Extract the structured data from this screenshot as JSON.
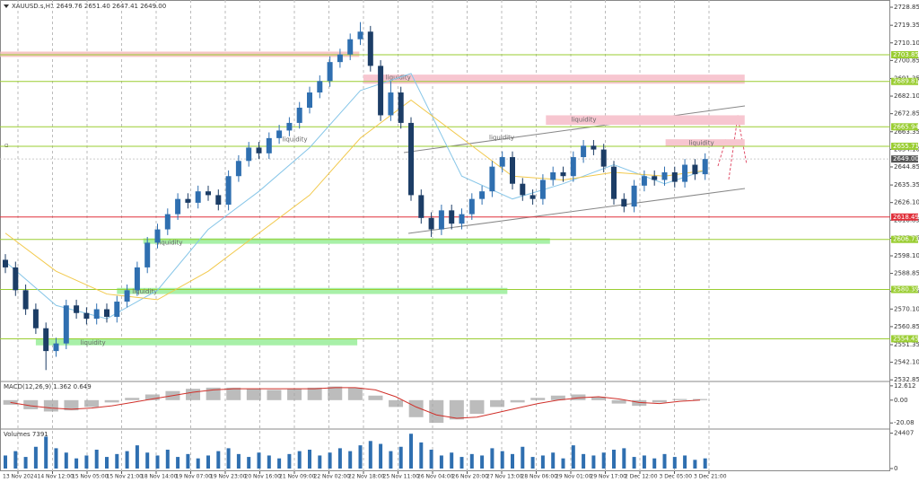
{
  "header": "XAUUSD.s,H1  2649.76 2651.40 2647.41 2649.00",
  "chart_data": {
    "type": "candlestick",
    "up_color": "#2f6fb0",
    "down_color": "#1c3d66",
    "grid": true,
    "ylim": [
      2532,
      2731.7
    ],
    "yticks": [
      {
        "value": 2728.85,
        "label": "2728.85"
      },
      {
        "value": 2719.35,
        "label": "2719.35"
      },
      {
        "value": 2710.1,
        "label": "2710.10"
      },
      {
        "value": 2700.85,
        "label": "2700.85"
      },
      {
        "value": 2691.35,
        "label": "2691.35"
      },
      {
        "value": 2682.1,
        "label": "2682.10"
      },
      {
        "value": 2672.85,
        "label": "2672.85"
      },
      {
        "value": 2663.35,
        "label": "2663.35"
      },
      {
        "value": 2654.1,
        "label": "2654.10"
      },
      {
        "value": 2644.85,
        "label": "2644.85"
      },
      {
        "value": 2635.35,
        "label": "2635.35"
      },
      {
        "value": 2626.1,
        "label": "2626.10"
      },
      {
        "value": 2616.85,
        "label": "2616.85"
      },
      {
        "value": 2607.35,
        "label": "2607.35"
      },
      {
        "value": 2598.1,
        "label": "2598.10"
      },
      {
        "value": 2588.85,
        "label": "2588.85"
      },
      {
        "value": 2579.35,
        "label": "2579.35"
      },
      {
        "value": 2570.1,
        "label": "2570.10"
      },
      {
        "value": 2560.85,
        "label": "2560.85"
      },
      {
        "value": 2551.35,
        "label": "2551.35"
      },
      {
        "value": 2542.1,
        "label": "2542.10"
      },
      {
        "value": 2532.85,
        "label": "2532.85"
      }
    ],
    "categories": [
      "13 Nov 2024",
      "14 Nov 12:00",
      "15 Nov 05:00",
      "15 Nov 21:00",
      "18 Nov 14:00",
      "19 Nov 07:00",
      "19 Nov 23:00",
      "20 Nov 16:00",
      "21 Nov 09:00",
      "22 Nov 02:00",
      "22 Nov 18:00",
      "25 Nov 11:00",
      "26 Nov 04:00",
      "26 Nov 20:00",
      "27 Nov 13:00",
      "28 Nov 06:00",
      "29 Nov 01:00",
      "29 Nov 17:00",
      "2 Dec 12:00",
      "3 Dec 05:00",
      "3 Dec 21:00"
    ],
    "candles": [
      [
        2596,
        2599,
        2589,
        2592
      ],
      [
        2592,
        2595,
        2577,
        2580
      ],
      [
        2580,
        2583,
        2567,
        2570
      ],
      [
        2570,
        2573,
        2557,
        2560
      ],
      [
        2560,
        2563,
        2538,
        2548
      ],
      [
        2548,
        2555,
        2545,
        2552
      ],
      [
        2552,
        2575,
        2549,
        2572
      ],
      [
        2572,
        2575,
        2565,
        2568
      ],
      [
        2568,
        2571,
        2562,
        2565
      ],
      [
        2565,
        2573,
        2562,
        2570
      ],
      [
        2570,
        2573,
        2563,
        2566
      ],
      [
        2566,
        2577,
        2563,
        2574
      ],
      [
        2574,
        2583,
        2571,
        2580
      ],
      [
        2580,
        2595,
        2577,
        2592
      ],
      [
        2592,
        2608,
        2589,
        2605
      ],
      [
        2605,
        2615,
        2602,
        2612
      ],
      [
        2612,
        2623,
        2609,
        2620
      ],
      [
        2620,
        2631,
        2617,
        2628
      ],
      [
        2628,
        2631,
        2623,
        2626
      ],
      [
        2626,
        2635,
        2623,
        2632
      ],
      [
        2632,
        2635,
        2627,
        2630
      ],
      [
        2630,
        2633,
        2622,
        2625
      ],
      [
        2625,
        2643,
        2622,
        2640
      ],
      [
        2640,
        2651,
        2637,
        2648
      ],
      [
        2648,
        2658,
        2645,
        2655
      ],
      [
        2655,
        2658,
        2649,
        2652
      ],
      [
        2652,
        2663,
        2649,
        2660
      ],
      [
        2660,
        2667,
        2657,
        2664
      ],
      [
        2664,
        2671,
        2661,
        2668
      ],
      [
        2668,
        2679,
        2665,
        2676
      ],
      [
        2676,
        2687,
        2673,
        2684
      ],
      [
        2684,
        2693,
        2681,
        2690
      ],
      [
        2690,
        2703,
        2687,
        2700
      ],
      [
        2700,
        2707,
        2697,
        2704
      ],
      [
        2704,
        2715,
        2701,
        2712
      ],
      [
        2712,
        2721,
        2709,
        2716
      ],
      [
        2716,
        2719,
        2695,
        2698
      ],
      [
        2698,
        2701,
        2669,
        2672
      ],
      [
        2672,
        2690,
        2669,
        2684
      ],
      [
        2684,
        2687,
        2665,
        2668
      ],
      [
        2668,
        2671,
        2627,
        2630
      ],
      [
        2630,
        2633,
        2615,
        2618
      ],
      [
        2618,
        2621,
        2608,
        2612
      ],
      [
        2612,
        2625,
        2609,
        2622
      ],
      [
        2622,
        2625,
        2612,
        2615
      ],
      [
        2615,
        2623,
        2612,
        2620
      ],
      [
        2620,
        2631,
        2617,
        2628
      ],
      [
        2628,
        2635,
        2625,
        2632
      ],
      [
        2632,
        2648,
        2629,
        2645
      ],
      [
        2645,
        2653,
        2642,
        2650
      ],
      [
        2650,
        2653,
        2633,
        2636
      ],
      [
        2636,
        2639,
        2627,
        2630
      ],
      [
        2630,
        2633,
        2625,
        2628
      ],
      [
        2628,
        2641,
        2625,
        2638
      ],
      [
        2638,
        2645,
        2635,
        2642
      ],
      [
        2642,
        2645,
        2637,
        2640
      ],
      [
        2640,
        2653,
        2637,
        2650
      ],
      [
        2650,
        2659,
        2647,
        2656
      ],
      [
        2656,
        2659,
        2651,
        2654
      ],
      [
        2654,
        2657,
        2642,
        2645
      ],
      [
        2645,
        2648,
        2625,
        2628
      ],
      [
        2628,
        2631,
        2621,
        2624
      ],
      [
        2624,
        2638,
        2621,
        2635
      ],
      [
        2635,
        2643,
        2632,
        2640
      ],
      [
        2640,
        2643,
        2635,
        2638
      ],
      [
        2638,
        2645,
        2635,
        2642
      ],
      [
        2642,
        2645,
        2634,
        2637
      ],
      [
        2637,
        2649,
        2634,
        2646
      ],
      [
        2646,
        2649,
        2638,
        2641
      ],
      [
        2641,
        2652,
        2638,
        2649
      ]
    ],
    "ma_lines": [
      {
        "color": "#87c6e8",
        "x": [
          0,
          5,
          10,
          15,
          20,
          25,
          30,
          35,
          40,
          45,
          50,
          55,
          60,
          65,
          69
        ],
        "values": [
          2595,
          2572,
          2565,
          2580,
          2612,
          2632,
          2655,
          2685,
          2694,
          2640,
          2628,
          2636,
          2646,
          2636,
          2643
        ]
      },
      {
        "color": "#f2c94c",
        "x": [
          0,
          5,
          10,
          15,
          20,
          25,
          30,
          35,
          40,
          45,
          50,
          55,
          60,
          65,
          69
        ],
        "values": [
          2610,
          2590,
          2578,
          2575,
          2590,
          2610,
          2630,
          2660,
          2680,
          2660,
          2640,
          2638,
          2642,
          2640,
          2643
        ]
      }
    ],
    "levels": [
      {
        "value": 2703.85,
        "label": "2703.85",
        "color": "#9acd32"
      },
      {
        "value": 2689.81,
        "label": "2689.81",
        "color": "#9acd32"
      },
      {
        "value": 2665.94,
        "label": "2665.94",
        "color": "#9acd32"
      },
      {
        "value": 2655.71,
        "label": "2655.71",
        "color": "#9acd32"
      },
      {
        "value": 2649.0,
        "label": "2649.00",
        "color": "#555555"
      },
      {
        "value": 2618.49,
        "label": "2618.49",
        "color": "#e0303a"
      },
      {
        "value": 2606.73,
        "label": "2606.73",
        "color": "#9acd32"
      },
      {
        "value": 2580.39,
        "label": "2580.39",
        "color": "#9acd32"
      },
      {
        "value": 2554.45,
        "label": "2554.45",
        "color": "#9acd32"
      }
    ],
    "zones": [
      {
        "color": "#f6c6c6",
        "x": [
          -0.5,
          34.9
        ],
        "y": [
          2705.5,
          2702.7
        ]
      },
      {
        "color": "#f7c6d0",
        "x": [
          35.3,
          72.9
        ],
        "y": [
          2693.4,
          2688.6
        ]
      },
      {
        "color": "#f7c6d0",
        "x": [
          53.3,
          72.9
        ],
        "y": [
          2672,
          2667
        ]
      },
      {
        "color": "#f7c6d0",
        "x": [
          65.1,
          72.9
        ],
        "y": [
          2659.4,
          2655.7
        ]
      },
      {
        "color": "#a8f0a8",
        "x": [
          13.6,
          53.7
        ],
        "y": [
          2607.3,
          2604.4
        ]
      },
      {
        "color": "#a8f0a8",
        "x": [
          11,
          49.5
        ],
        "y": [
          2581.2,
          2578
        ]
      },
      {
        "color": "#a8f0a8",
        "x": [
          3,
          34.7
        ],
        "y": [
          2554.7,
          2551
        ]
      }
    ],
    "annotations": [
      {
        "text": "liquidity",
        "x": 37.5,
        "y": 2691.9
      },
      {
        "text": "liquidity",
        "x": 27.3,
        "y": 2659.3
      },
      {
        "text": "liquidity",
        "x": 47.7,
        "y": 2660.2
      },
      {
        "text": "liquidity",
        "x": 55.8,
        "y": 2669.6
      },
      {
        "text": "liquidity",
        "x": 67.4,
        "y": 2657.4
      },
      {
        "text": "liquidity",
        "x": 15,
        "y": 2604.9
      },
      {
        "text": "liquidity",
        "x": 12.5,
        "y": 2579.3
      },
      {
        "text": "liquidity",
        "x": 7.4,
        "y": 2552.4
      }
    ],
    "macd": {
      "label": "MACD(12,26,9) 1.362 0.649",
      "ylim": [
        -24.65,
        15.65
      ],
      "yticks": [
        {
          "value": 12.612,
          "label": "12.612"
        },
        {
          "value": 0,
          "label": "0.00"
        },
        {
          "value": -20.08,
          "label": "-20.08"
        }
      ],
      "histogram": [
        -4,
        -8,
        -10,
        -9,
        -6,
        -2,
        2,
        5,
        8,
        10,
        11,
        11,
        10,
        9,
        10,
        11,
        12,
        11,
        4,
        -6,
        -15,
        -20,
        -17,
        -12,
        -6,
        -2,
        2,
        4,
        5,
        3,
        -3,
        -5,
        -2,
        1,
        1
      ],
      "signal": [
        -2,
        -5,
        -7,
        -8,
        -7,
        -5,
        -2,
        1,
        4,
        7,
        9,
        10,
        10,
        10,
        10,
        10,
        11,
        11,
        9,
        3,
        -6,
        -13,
        -16,
        -15,
        -11,
        -7,
        -3,
        0,
        2,
        3,
        1,
        -2,
        -3,
        -1,
        0
      ],
      "hist_color": "#a0a0a0",
      "signal_color": "#d0302a"
    },
    "volume": {
      "label": "Volumes 7391",
      "ylim": [
        0,
        26000
      ],
      "yticks": [
        24407,
        0
      ],
      "color": "#2f6fb0",
      "values": [
        9000,
        12000,
        8000,
        15000,
        22000,
        14000,
        11000,
        7000,
        9000,
        13000,
        8000,
        10000,
        12000,
        16000,
        11000,
        9000,
        13000,
        8000,
        10000,
        7000,
        9000,
        12000,
        14000,
        10000,
        8000,
        11000,
        9000,
        7000,
        10000,
        12000,
        13000,
        9000,
        11000,
        14000,
        12000,
        16000,
        19000,
        17000,
        12000,
        15000,
        24000,
        18000,
        13000,
        9000,
        11000,
        8000,
        10000,
        9000,
        14000,
        12000,
        10000,
        15000,
        8000,
        9000,
        11000,
        7000,
        16000,
        10000,
        9000,
        11000,
        13000,
        14000,
        8000,
        9000,
        7000,
        10000,
        8000,
        9000,
        6000,
        7000
      ]
    }
  }
}
